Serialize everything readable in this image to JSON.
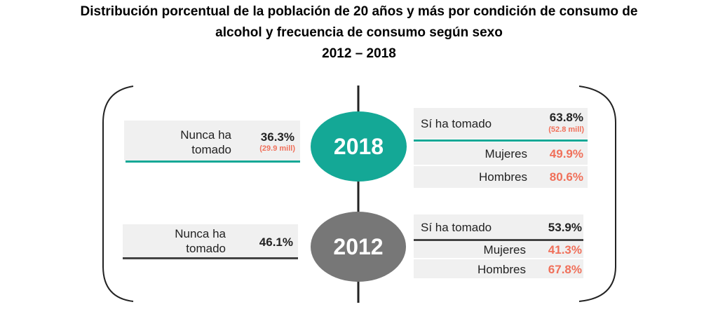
{
  "title": {
    "line1": "Distribución porcentual de la población de 20 años y más por condición de consumo de",
    "line2": "alcohol y frecuencia de consumo según sexo",
    "line3": "2012 – 2018"
  },
  "colors": {
    "teal": "#14a896",
    "gray": "#777777",
    "red": "#f0705a"
  },
  "y2018": {
    "year": "2018",
    "never_label_1": "Nunca ha",
    "never_label_2": "tomado",
    "never_value": "36.3%",
    "never_mill": "(29.9 mill)",
    "yes_label": "Sí ha tomado",
    "yes_value": "63.8%",
    "yes_mill": "(52.8 mill)",
    "women_label": "Mujeres",
    "women_value": "49.9%",
    "men_label": "Hombres",
    "men_value": "80.6%"
  },
  "y2012": {
    "year": "2012",
    "never_label_1": "Nunca ha",
    "never_label_2": "tomado",
    "never_value": "46.1%",
    "yes_label": "Sí ha tomado",
    "yes_value": "53.9%",
    "women_label": "Mujeres",
    "women_value": "41.3%",
    "men_label": "Hombres",
    "men_value": "67.8%"
  }
}
